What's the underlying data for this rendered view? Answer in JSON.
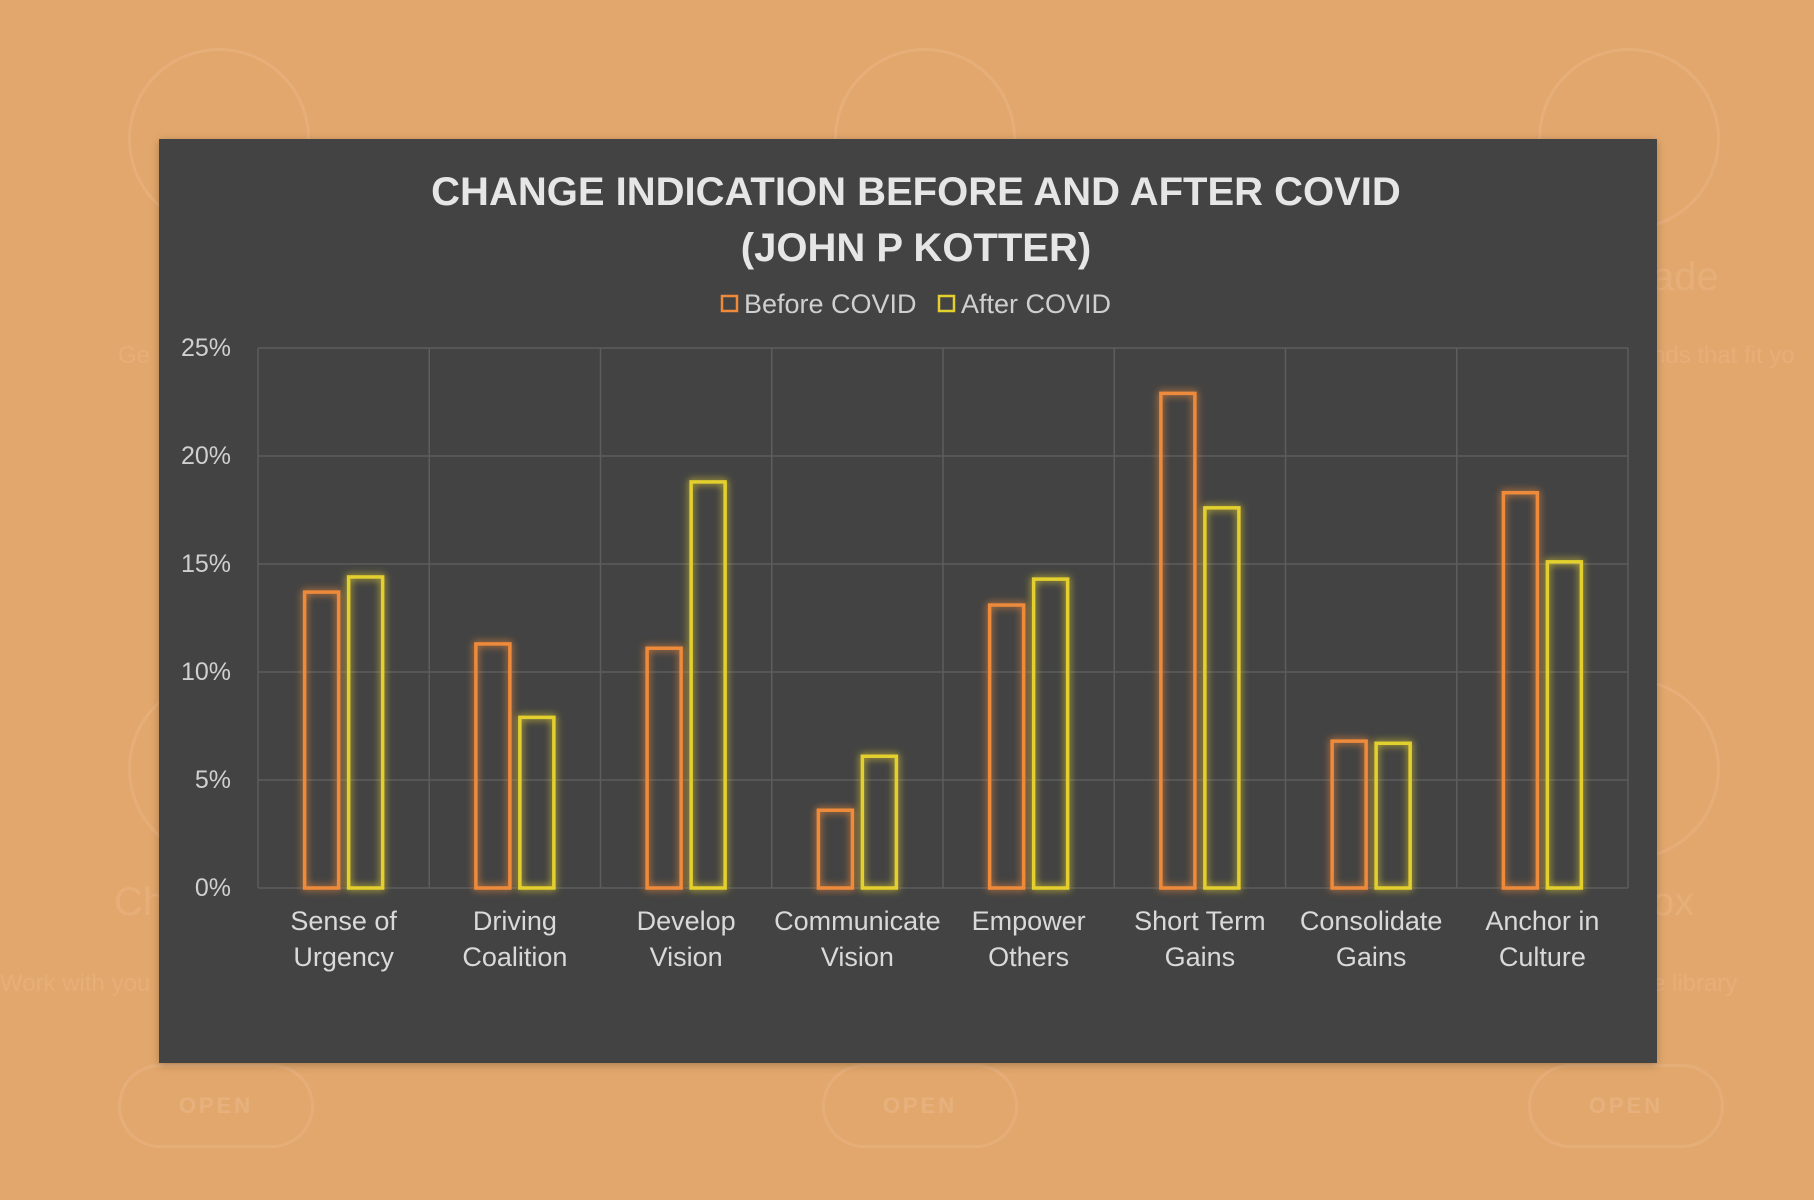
{
  "background": {
    "buttons": [
      "OPEN",
      "OPEN",
      "OPEN"
    ],
    "fragments": [
      "Ch",
      "ox",
      "ade",
      "Ge",
      "nds that fit yo",
      "Work with you",
      "e library"
    ]
  },
  "colors": {
    "background": "#e2a76c",
    "panel": "#434343",
    "before": "#ee8a3a",
    "after": "#e3d02f",
    "grid": "#5d5d5d"
  },
  "chart_data": {
    "type": "bar",
    "title": [
      "CHANGE INDICATION BEFORE AND AFTER COVID",
      "(JOHN P KOTTER)"
    ],
    "legend_position": "top",
    "grid": true,
    "ylim": [
      0,
      25
    ],
    "y_ticks": [
      "0%",
      "5%",
      "10%",
      "15%",
      "20%",
      "25%"
    ],
    "y_tick_values": [
      0,
      5,
      10,
      15,
      20,
      25
    ],
    "categories": [
      [
        "Sense of",
        "Urgency"
      ],
      [
        "Driving",
        "Coalition"
      ],
      [
        "Develop",
        "Vision"
      ],
      [
        "Communicate",
        "Vision"
      ],
      [
        "Empower",
        "Others"
      ],
      [
        "Short Term",
        "Gains"
      ],
      [
        "Consolidate",
        "Gains"
      ],
      [
        "Anchor in",
        "Culture"
      ]
    ],
    "series": [
      {
        "name": "Before COVID",
        "color": "#ee8a3a",
        "values": [
          13.7,
          11.3,
          11.1,
          3.6,
          13.1,
          22.9,
          6.8,
          18.3
        ]
      },
      {
        "name": "After COVID",
        "color": "#e3d02f",
        "values": [
          14.4,
          7.9,
          18.8,
          6.1,
          14.3,
          17.6,
          6.7,
          15.1
        ]
      }
    ]
  }
}
